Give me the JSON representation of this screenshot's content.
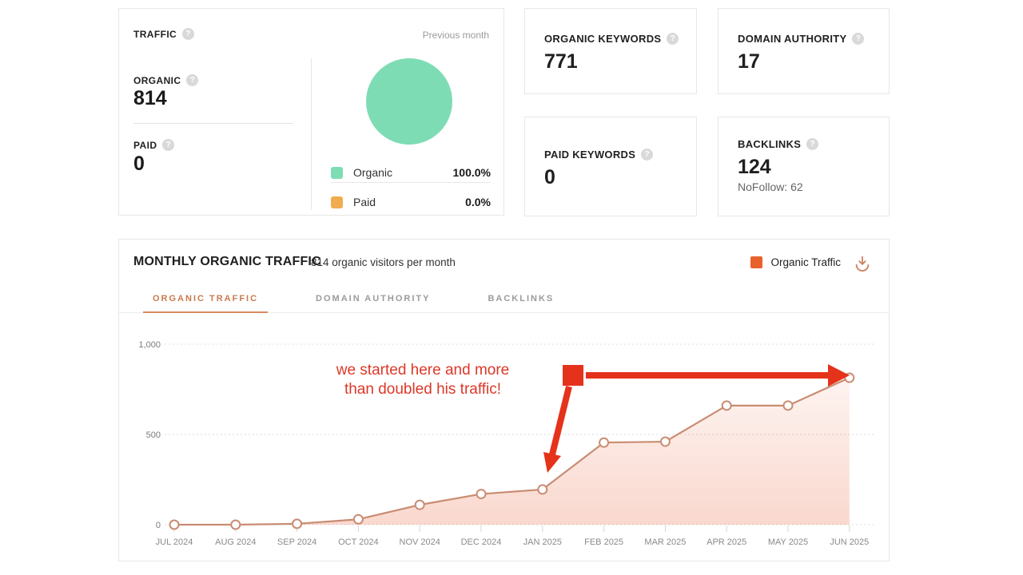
{
  "traffic_card": {
    "title": "TRAFFIC",
    "period_label": "Previous month",
    "organic_label": "ORGANIC",
    "organic_value": "814",
    "paid_label": "PAID",
    "paid_value": "0",
    "pie": {
      "organic_legend": "Organic",
      "organic_pct": "100.0%",
      "paid_legend": "Paid",
      "paid_pct": "0.0%",
      "organic_color": "#7edcb4",
      "paid_color": "#f0ac4e"
    }
  },
  "stats": {
    "organic_keywords": {
      "label": "ORGANIC KEYWORDS",
      "value": "771"
    },
    "domain_authority": {
      "label": "DOMAIN AUTHORITY",
      "value": "17"
    },
    "paid_keywords": {
      "label": "PAID KEYWORDS",
      "value": "0"
    },
    "backlinks": {
      "label": "BACKLINKS",
      "value": "124",
      "sub": "NoFollow: 62"
    }
  },
  "chart_card": {
    "title": "MONTHLY ORGANIC TRAFFIC",
    "subtitle": "814 organic visitors per month",
    "legend_label": "Organic Traffic",
    "legend_color": "#e8612c",
    "download_icon_color": "#ce8163",
    "tabs": {
      "0": {
        "label": "ORGANIC TRAFFIC"
      },
      "1": {
        "label": "DOMAIN AUTHORITY"
      },
      "2": {
        "label": "BACKLINKS"
      }
    },
    "annotation": {
      "line1": "we started here and more",
      "line2": "than doubled his traffic!",
      "text_color": "#dc3828",
      "arrow_color": "#e5321b"
    }
  },
  "chart_data": {
    "type": "line",
    "title": "Monthly Organic Traffic",
    "categories": [
      "JUL 2024",
      "AUG 2024",
      "SEP 2024",
      "OCT 2024",
      "NOV 2024",
      "DEC 2024",
      "JAN 2025",
      "FEB 2025",
      "MAR 2025",
      "APR 2025",
      "MAY 2025",
      "JUN 2025"
    ],
    "series": [
      {
        "name": "Organic Traffic",
        "values": [
          0,
          0,
          5,
          30,
          110,
          170,
          195,
          455,
          460,
          660,
          660,
          814
        ]
      }
    ],
    "ylim": [
      0,
      1000
    ],
    "ytick_values": [
      0,
      500,
      1000
    ],
    "ytick_labels": [
      "0",
      "500",
      "1,000"
    ],
    "xlabel": "",
    "ylabel": "",
    "grid": "horizontal-dotted",
    "legend_position": "top-right",
    "line_color": "#c98c72",
    "point_fill": "#ffffff",
    "area_color": "#ed7d5a"
  }
}
